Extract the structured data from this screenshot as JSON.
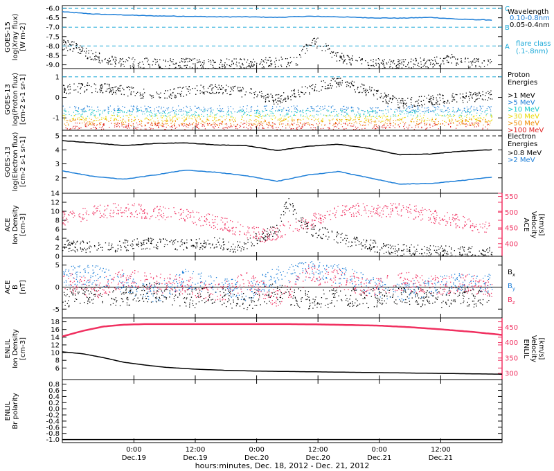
{
  "chart_data": {
    "type": "scatter",
    "xlabel": "hours:minutes, Dec. 18, 2012 - Dec. 21, 2012",
    "x_ticks": [
      {
        "time": "0:00",
        "date": "Dec.19"
      },
      {
        "time": "12:00",
        "date": "Dec.19"
      },
      {
        "time": "0:00",
        "date": "Dec.20"
      },
      {
        "time": "12:00",
        "date": "Dec.20"
      },
      {
        "time": "0:00",
        "date": "Dec.21"
      },
      {
        "time": "12:00",
        "date": "Dec.21"
      }
    ],
    "x_range_hours_from_dec18_0000": [
      10,
      96
    ],
    "panels": [
      {
        "id": "goes15-xray",
        "ylabel": [
          "GOES-15",
          "log(Xray flux)",
          "[W m^-2]"
        ],
        "ylim": [
          -9.2,
          -5.85
        ],
        "yticks": [
          -6.0,
          -6.5,
          -7.0,
          -7.5,
          -8.0,
          -8.5,
          -9.0
        ],
        "ytick_labels": [
          "-6.0",
          "-6.5",
          "-7.0",
          "-7.5",
          "-8.0",
          "-8.5",
          "-9.0"
        ],
        "thresholds": [
          {
            "y": -6.0,
            "label": "C"
          },
          {
            "y": -7.0,
            "label": "B"
          },
          {
            "y": -8.0,
            "label": "A"
          }
        ],
        "legend": {
          "title": "Wavelength",
          "entries": [
            {
              "label": "0.10-0.8nm",
              "color": "#1e7fd8"
            },
            {
              "label": "0.05-0.4nm",
              "color": "#000000"
            }
          ],
          "note": [
            "flare class",
            "(.1-.8nm)"
          ]
        },
        "series": [
          {
            "color": "#1e7fd8",
            "kind": "line",
            "x": [
              10,
              16,
              22,
              28,
              34,
              40,
              46,
              52,
              58,
              64,
              70,
              76,
              82,
              88,
              94
            ],
            "y": [
              -6.18,
              -6.3,
              -6.35,
              -6.4,
              -6.42,
              -6.45,
              -6.45,
              -6.48,
              -6.42,
              -6.45,
              -6.5,
              -6.52,
              -6.48,
              -6.58,
              -6.62
            ]
          },
          {
            "color": "#000000",
            "kind": "scatter",
            "x": [
              10,
              12,
              14,
              18,
              22,
              26,
              30,
              34,
              40,
              46,
              52,
              56,
              58,
              60,
              62,
              64,
              70,
              76,
              82,
              86,
              90,
              94
            ],
            "y": [
              -7.9,
              -8.0,
              -8.3,
              -8.7,
              -8.85,
              -8.9,
              -8.95,
              -8.9,
              -8.95,
              -8.9,
              -8.85,
              -8.8,
              -7.9,
              -7.8,
              -8.2,
              -8.6,
              -8.9,
              -8.95,
              -8.85,
              -8.7,
              -8.9,
              -8.95
            ]
          }
        ]
      },
      {
        "id": "goes13-proton",
        "ylabel": [
          "GOES-13",
          "log(Proton flux)",
          "[cm^-2 s^-1 sr^-1]"
        ],
        "ylim": [
          -1.6,
          1.4
        ],
        "yticks": [
          1,
          0,
          -1
        ],
        "ytick_labels": [
          "1",
          "0",
          "-1"
        ],
        "thresholds": [
          {
            "y": 1,
            "label": ""
          }
        ],
        "legend": {
          "title": "Proton",
          "title2": "Energies",
          "entries": [
            {
              "label": ">1 MeV",
              "color": "#000000"
            },
            {
              "label": ">5 MeV",
              "color": "#1e7fd8"
            },
            {
              "label": ">10 MeV",
              "color": "#19c8c8"
            },
            {
              "label": ">30 MeV",
              "color": "#e8d800"
            },
            {
              "label": ">50 MeV",
              "color": "#f08c00"
            },
            {
              "label": ">100 MeV",
              "color": "#e02020"
            }
          ]
        },
        "series": [
          {
            "color": "#000000",
            "kind": "scatter",
            "x": [
              10,
              16,
              22,
              28,
              34,
              40,
              46,
              52,
              58,
              64,
              70,
              76,
              82,
              88,
              94
            ],
            "y": [
              0.4,
              0.5,
              0.35,
              0.1,
              0.3,
              0.45,
              0.25,
              -0.1,
              0.4,
              0.8,
              0.3,
              -0.3,
              -0.1,
              0.0,
              0.15
            ]
          },
          {
            "color": "#1e7fd8",
            "kind": "band",
            "x": [
              10,
              94
            ],
            "y": [
              -0.55,
              -0.55
            ]
          },
          {
            "color": "#19c8c8",
            "kind": "band",
            "x": [
              10,
              94
            ],
            "y": [
              -0.75,
              -0.75
            ]
          },
          {
            "color": "#e8d800",
            "kind": "band",
            "x": [
              10,
              94
            ],
            "y": [
              -1.0,
              -1.0
            ]
          },
          {
            "color": "#f08c00",
            "kind": "band",
            "x": [
              10,
              94
            ],
            "y": [
              -1.2,
              -1.2
            ]
          },
          {
            "color": "#e02020",
            "kind": "band",
            "x": [
              10,
              94
            ],
            "y": [
              -1.38,
              -1.38
            ]
          }
        ]
      },
      {
        "id": "goes13-electron",
        "ylabel": [
          "GOES-13",
          "log(Electron flux)",
          "[cm^-2 s^-1 sr^-1]"
        ],
        "ylim": [
          0.9,
          5.4
        ],
        "yticks": [
          5,
          4,
          3,
          2
        ],
        "ytick_labels": [
          "5",
          "4",
          "3",
          "2"
        ],
        "thresholds": [
          {
            "y": 5,
            "label": ""
          }
        ],
        "legend": {
          "title": "Electron",
          "title2": "Energies",
          "entries": [
            {
              "label": ">0.8 MeV",
              "color": "#000000"
            },
            {
              "label": ">2 MeV",
              "color": "#1e7fd8"
            }
          ]
        },
        "series": [
          {
            "color": "#000000",
            "kind": "line",
            "x": [
              10,
              16,
              22,
              28,
              34,
              40,
              46,
              52,
              58,
              64,
              70,
              76,
              82,
              88,
              94
            ],
            "y": [
              4.65,
              4.5,
              4.3,
              4.45,
              4.5,
              4.35,
              4.3,
              3.95,
              4.25,
              4.4,
              4.1,
              3.65,
              3.7,
              3.9,
              4.0
            ]
          },
          {
            "color": "#1e7fd8",
            "kind": "line",
            "x": [
              10,
              16,
              22,
              28,
              34,
              40,
              46,
              52,
              58,
              64,
              70,
              76,
              82,
              88,
              94
            ],
            "y": [
              2.5,
              2.1,
              1.9,
              2.2,
              2.55,
              2.4,
              2.15,
              1.75,
              2.2,
              2.45,
              2.0,
              1.55,
              1.6,
              1.8,
              2.05
            ]
          }
        ]
      },
      {
        "id": "ace-density-velocity",
        "ylabel": [
          "ACE",
          "Ion Density",
          "[cm^-3]"
        ],
        "ylabel_right": [
          "ACE",
          "Velocity",
          "[km/s]"
        ],
        "ylim": [
          0,
          14
        ],
        "yticks": [
          0,
          2,
          4,
          6,
          8,
          10,
          12,
          14
        ],
        "ytick_labels": [
          "0",
          "2",
          "4",
          "6",
          "8",
          "10",
          "12",
          "14"
        ],
        "ylim_right": [
          360,
          560
        ],
        "yticks_right": [
          400,
          450,
          500,
          550
        ],
        "ytick_labels_right": [
          "400",
          "450",
          "500",
          "550"
        ],
        "series": [
          {
            "color": "#000000",
            "kind": "scatter",
            "axis": "left",
            "x": [
              10,
              16,
              22,
              28,
              34,
              40,
              44,
              48,
              52,
              54,
              56,
              58,
              62,
              66,
              70,
              76,
              82,
              88,
              94
            ],
            "y": [
              2.5,
              2.0,
              2.5,
              3.0,
              2.5,
              3.0,
              2.0,
              4.0,
              6.0,
              12.0,
              9.0,
              6.0,
              5.0,
              3.5,
              2.5,
              1.5,
              1.2,
              1.0,
              1.0
            ]
          },
          {
            "color": "#f03060",
            "kind": "scatter",
            "axis": "right",
            "x": [
              10,
              16,
              22,
              28,
              34,
              40,
              46,
              50,
              56,
              62,
              66,
              70,
              76,
              82,
              88,
              94
            ],
            "y": [
              480,
              500,
              510,
              500,
              490,
              470,
              440,
              425,
              460,
              490,
              510,
              505,
              510,
              490,
              470,
              450
            ]
          }
        ]
      },
      {
        "id": "ace-b",
        "ylabel": [
          "ACE",
          "B",
          "[nT]"
        ],
        "ylim": [
          -7,
          7
        ],
        "yticks": [
          5,
          0,
          -5
        ],
        "ytick_labels": [
          "5",
          "0",
          "-5"
        ],
        "zero_line": true,
        "legend": {
          "entries": [
            {
              "label": "Bx",
              "color": "#000000"
            },
            {
              "label": "By",
              "color": "#1e7fd8"
            },
            {
              "label": "Bz",
              "color": "#f03060"
            }
          ]
        },
        "series": [
          {
            "color": "#000000",
            "kind": "scatter",
            "x": [
              10,
              16,
              22,
              28,
              34,
              40,
              46,
              52,
              58,
              64,
              70,
              76,
              82,
              88,
              94
            ],
            "y": [
              -2.5,
              -1.5,
              -2.0,
              -1.0,
              -2.5,
              -2.0,
              -3.0,
              -1.0,
              -3.0,
              -2.0,
              -2.5,
              -1.5,
              -2.5,
              -2.0,
              -2.8
            ]
          },
          {
            "color": "#1e7fd8",
            "kind": "scatter",
            "x": [
              10,
              16,
              22,
              28,
              34,
              40,
              46,
              52,
              58,
              64,
              70,
              76,
              82,
              88,
              94
            ],
            "y": [
              2.5,
              3.0,
              1.0,
              -1.5,
              2.0,
              0.5,
              -1.0,
              2.5,
              4.0,
              3.0,
              0.5,
              -1.0,
              0.0,
              1.5,
              1.0
            ]
          },
          {
            "color": "#f03060",
            "kind": "scatter",
            "x": [
              10,
              16,
              22,
              28,
              34,
              40,
              46,
              52,
              58,
              64,
              70,
              76,
              82,
              88,
              94
            ],
            "y": [
              1.5,
              -0.5,
              2.0,
              1.0,
              0.5,
              -1.5,
              1.5,
              -2.5,
              3.0,
              2.0,
              0.0,
              1.5,
              0.5,
              1.0,
              0.0
            ]
          }
        ]
      },
      {
        "id": "enlil-density-velocity",
        "ylabel": [
          "ENLIL",
          "Ion Density",
          "[cm^-3]"
        ],
        "ylabel_right": [
          "ENLIL",
          "Velocity",
          "[km/s]"
        ],
        "ylim": [
          3,
          19
        ],
        "yticks": [
          6,
          8,
          10,
          12,
          14,
          16,
          18
        ],
        "ytick_labels": [
          "6",
          "8",
          "10",
          "12",
          "14",
          "16",
          "18"
        ],
        "ylim_right": [
          280,
          480
        ],
        "yticks_right": [
          300,
          350,
          400,
          450
        ],
        "ytick_labels_right": [
          "300",
          "350",
          "400",
          "450"
        ],
        "series": [
          {
            "color": "#000000",
            "kind": "line",
            "axis": "left",
            "x": [
              10,
              14,
              18,
              22,
              26,
              30,
              36,
              42,
              48,
              54,
              60,
              66,
              72,
              78,
              84,
              90,
              96
            ],
            "y": [
              10.2,
              9.7,
              8.7,
              7.5,
              6.8,
              6.2,
              5.7,
              5.4,
              5.2,
              5.1,
              5.0,
              4.9,
              4.8,
              4.7,
              4.6,
              4.5,
              4.4
            ]
          },
          {
            "color": "#f03060",
            "kind": "line",
            "axis": "right",
            "x": [
              10,
              14,
              18,
              22,
              26,
              30,
              36,
              42,
              48,
              54,
              60,
              66,
              72,
              78,
              84,
              90,
              96
            ],
            "y": [
              420,
              438,
              452,
              458,
              460,
              460,
              460,
              460,
              460,
              460,
              459,
              457,
              455,
              450,
              443,
              435,
              425
            ]
          }
        ]
      },
      {
        "id": "enlil-polarity",
        "ylabel": [
          "ENLIL",
          "Br polarity"
        ],
        "ylim": [
          -1.1,
          0.95
        ],
        "yticks": [
          0.8,
          0.6,
          0.4,
          0.2,
          0.0,
          -0.2,
          -0.4,
          -0.6,
          -0.8,
          -1.0
        ],
        "ytick_labels": [
          "0.8",
          "0.6",
          "0.4",
          "0.2",
          "0.0",
          "-0.2",
          "-0.4",
          "-0.6",
          "-0.8",
          "-1.0"
        ],
        "series": [
          {
            "color": "#000000",
            "kind": "line",
            "x": [
              10,
              96
            ],
            "y": [
              -1.0,
              -1.0
            ]
          }
        ]
      }
    ]
  }
}
